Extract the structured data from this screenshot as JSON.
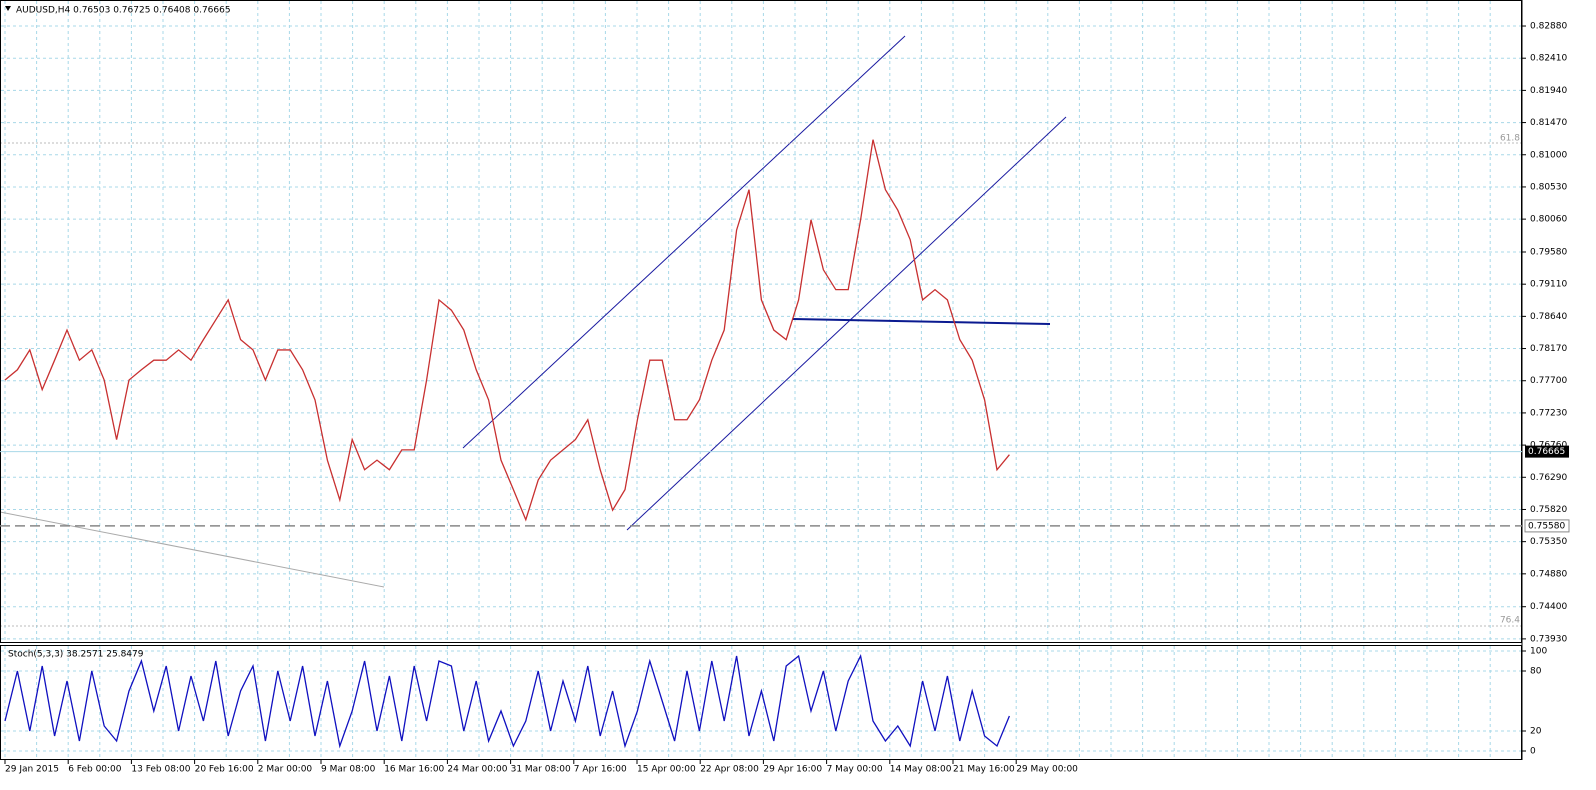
{
  "chart_data": {
    "type": "line",
    "title": "AUDUSD,H4  0.76503 0.76725 0.76408 0.76665",
    "ylim": [
      0.7387,
      0.8326
    ],
    "yticks": [
      {
        "value": 0.8288,
        "label": "0.82880"
      },
      {
        "value": 0.8241,
        "label": "0.82410"
      },
      {
        "value": 0.8194,
        "label": "0.81940"
      },
      {
        "value": 0.8147,
        "label": "0.81470"
      },
      {
        "value": 0.81,
        "label": "0.81000"
      },
      {
        "value": 0.8053,
        "label": "0.80530"
      },
      {
        "value": 0.8006,
        "label": "0.80060"
      },
      {
        "value": 0.7958,
        "label": "0.79580"
      },
      {
        "value": 0.7911,
        "label": "0.79110"
      },
      {
        "value": 0.7864,
        "label": "0.78640"
      },
      {
        "value": 0.7817,
        "label": "0.78170"
      },
      {
        "value": 0.777,
        "label": "0.77700"
      },
      {
        "value": 0.7723,
        "label": "0.77230"
      },
      {
        "value": 0.7676,
        "label": "0.76760"
      },
      {
        "value": 0.7629,
        "label": "0.76290"
      },
      {
        "value": 0.7582,
        "label": "0.75820"
      },
      {
        "value": 0.7535,
        "label": "0.75350"
      },
      {
        "value": 0.7488,
        "label": "0.74880"
      },
      {
        "value": 0.744,
        "label": "0.74400"
      },
      {
        "value": 0.7393,
        "label": "0.73930"
      }
    ],
    "current_price": {
      "value": 0.76665,
      "label": "0.76665"
    },
    "level": {
      "value": 0.7558,
      "label": "0.75580"
    },
    "fib_labels": [
      "61.8",
      "76.4"
    ],
    "grid": true,
    "series": [
      {
        "name": "AUDUSD",
        "color": "#c83030",
        "values": [
          0.7771,
          0.7786,
          0.7815,
          0.7757,
          0.78,
          0.7844,
          0.78,
          0.7815,
          0.7771,
          0.7684,
          0.7771,
          0.7786,
          0.78,
          0.78,
          0.7815,
          0.78,
          0.783,
          0.7859,
          0.7888,
          0.783,
          0.7815,
          0.7771,
          0.7815,
          0.7815,
          0.7786,
          0.7742,
          0.7654,
          0.7596,
          0.7684,
          0.764,
          0.7654,
          0.764,
          0.7669,
          0.7669,
          0.7771,
          0.7888,
          0.7873,
          0.7844,
          0.7786,
          0.7742,
          0.7654,
          0.7611,
          0.7567,
          0.7625,
          0.7654,
          0.7669,
          0.7684,
          0.7713,
          0.764,
          0.7581,
          0.7611,
          0.7713,
          0.78,
          0.78,
          0.7713,
          0.7713,
          0.7742,
          0.78,
          0.7844,
          0.799,
          0.8049,
          0.7888,
          0.7844,
          0.783,
          0.7888,
          0.8005,
          0.7932,
          0.7903,
          0.7903,
          0.8005,
          0.8122,
          0.8049,
          0.8019,
          0.7976,
          0.7888,
          0.7903,
          0.7888,
          0.783,
          0.78,
          0.7742,
          0.764,
          0.7662
        ]
      }
    ],
    "x_labels": [
      "29 Jan 2015",
      "6 Feb 00:00",
      "13 Feb 08:00",
      "20 Feb 16:00",
      "2 Mar 00:00",
      "9 Mar 08:00",
      "16 Mar 16:00",
      "24 Mar 00:00",
      "31 Mar 08:00",
      "7 Apr 16:00",
      "15 Apr 00:00",
      "22 Apr 08:00",
      "29 Apr 16:00",
      "7 May 00:00",
      "14 May 08:00",
      "21 May 16:00",
      "29 May 00:00"
    ],
    "indicator": {
      "title": "Stoch(5,3,3) 38.2571 25.8479",
      "ylim": [
        -9,
        105
      ],
      "yticks": [
        100,
        80,
        20,
        0
      ],
      "series": [
        {
          "name": "Stoch",
          "color": "#1010c0",
          "values": [
            30,
            80,
            20,
            85,
            15,
            70,
            10,
            80,
            25,
            10,
            60,
            90,
            40,
            85,
            20,
            75,
            30,
            90,
            15,
            60,
            85,
            10,
            80,
            30,
            85,
            15,
            70,
            5,
            40,
            90,
            20,
            75,
            10,
            85,
            30,
            90,
            85,
            20,
            70,
            10,
            40,
            5,
            30,
            80,
            20,
            70,
            30,
            85,
            15,
            60,
            5,
            40,
            90,
            50,
            10,
            80,
            20,
            90,
            30,
            95,
            15,
            60,
            10,
            85,
            95,
            40,
            80,
            20,
            70,
            95,
            30,
            10,
            25,
            5,
            70,
            20,
            75,
            10,
            60,
            15,
            5,
            35
          ]
        }
      ]
    }
  }
}
